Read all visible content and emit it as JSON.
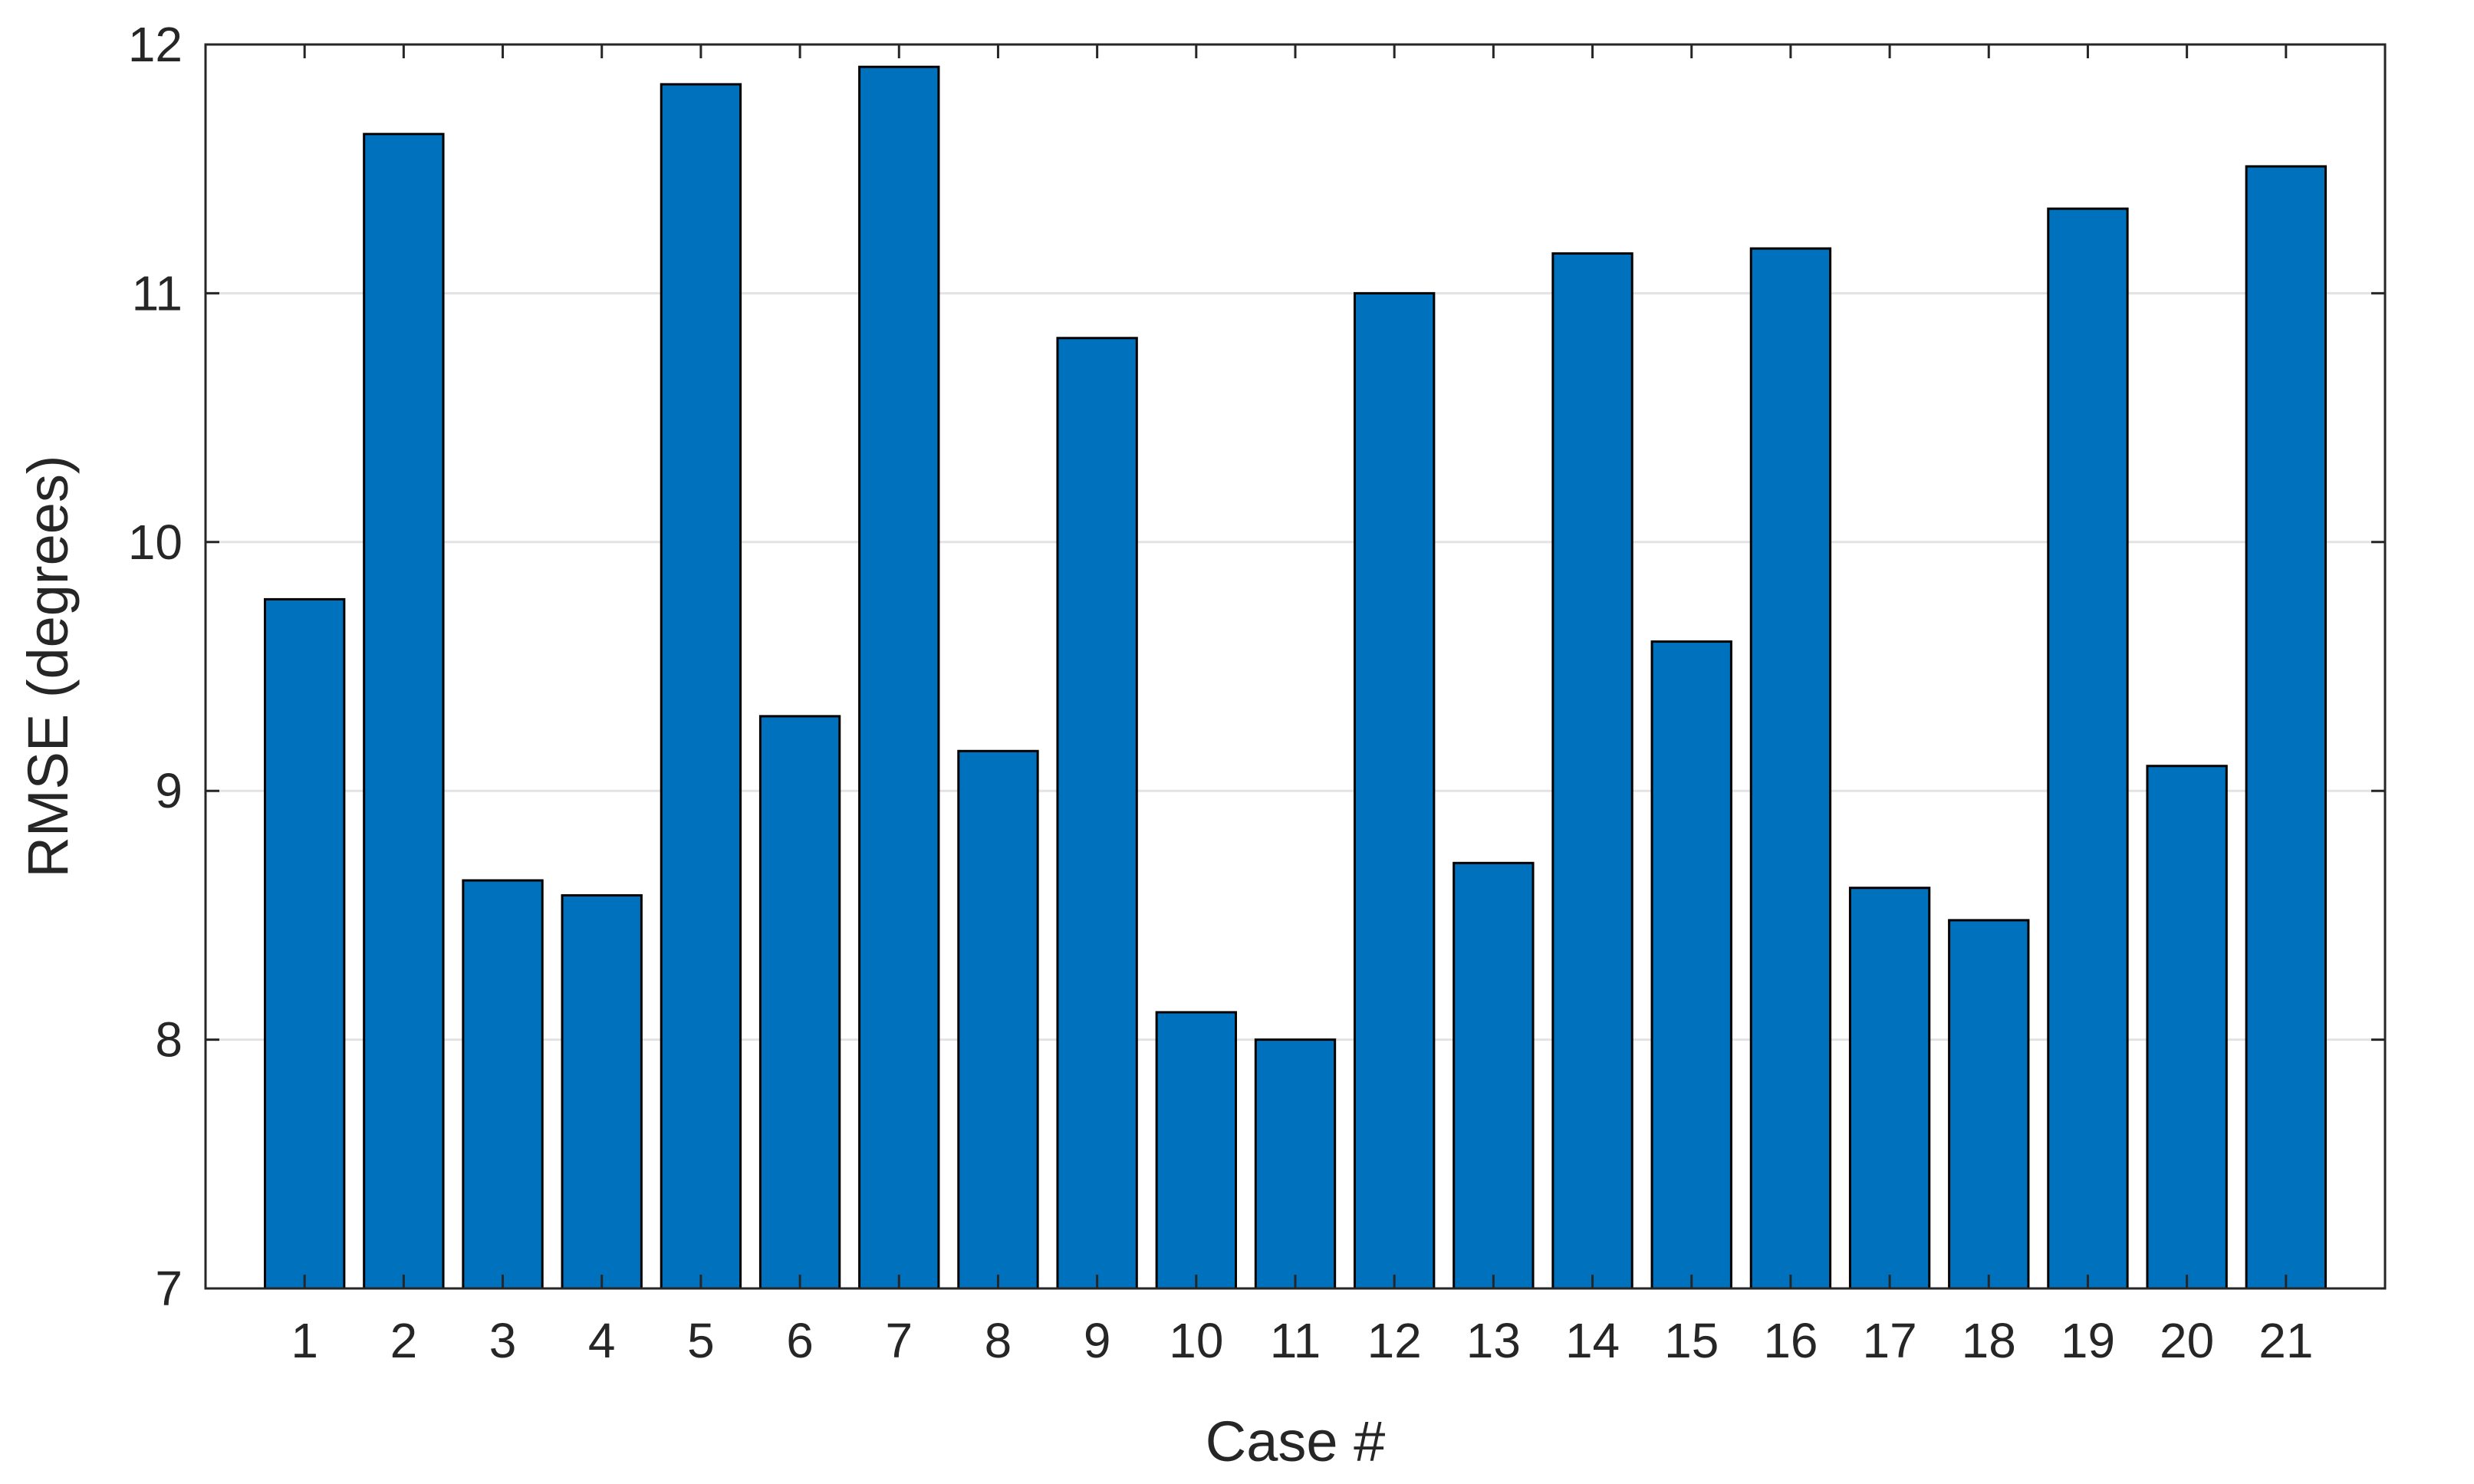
{
  "chart_data": {
    "type": "bar",
    "categories": [
      "1",
      "2",
      "3",
      "4",
      "5",
      "6",
      "7",
      "8",
      "9",
      "10",
      "11",
      "12",
      "13",
      "14",
      "15",
      "16",
      "17",
      "18",
      "19",
      "20",
      "21"
    ],
    "values": [
      9.77,
      11.64,
      8.64,
      8.58,
      11.84,
      9.3,
      11.91,
      9.16,
      10.82,
      8.11,
      8.0,
      11.0,
      8.71,
      11.16,
      9.6,
      11.18,
      8.61,
      8.48,
      11.34,
      9.1,
      11.51
    ],
    "title": "",
    "xlabel": "Case #",
    "ylabel": "RMSE (degrees)",
    "ylim": [
      7,
      12
    ],
    "yticks": [
      7,
      8,
      9,
      10,
      11,
      12
    ],
    "grid": "horizontal",
    "bar_color": "#0072BD",
    "bar_edge_color": "#000000"
  }
}
